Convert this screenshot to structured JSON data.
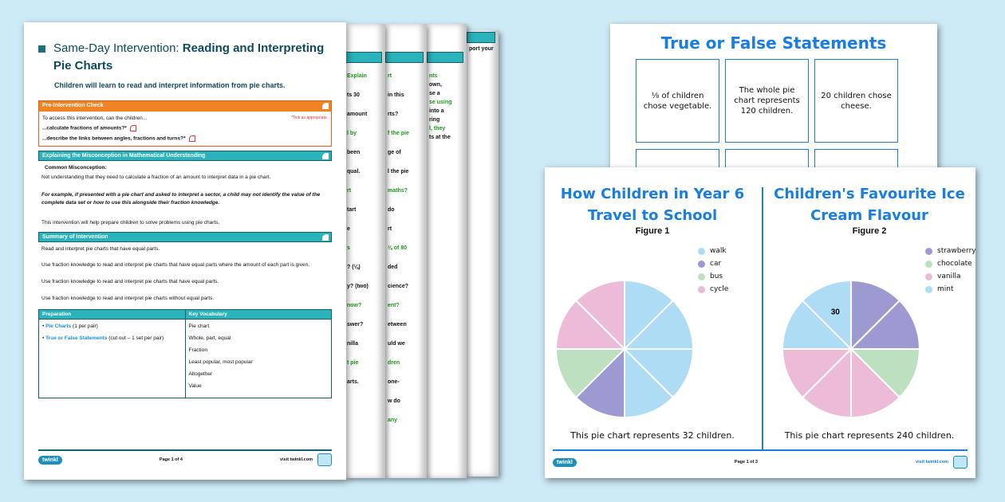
{
  "main_doc": {
    "title_prefix": "Same-Day Intervention: ",
    "title_bold": "Reading and Interpreting Pie Charts",
    "subtitle": "Children will learn to read and interpret information from pie charts.",
    "pre_check": {
      "header": "Pre-Intervention Check",
      "intro": "To access this intervention, can the children...",
      "note": "*Tick as appropriate.",
      "items": [
        "...calculate fractions of amounts?*",
        "...describe the links between angles, fractions and turns?*"
      ]
    },
    "misconception": {
      "header": "Explaining the Misconception in Mathematical Understanding",
      "label": "Common Misconception:",
      "text": "Not understanding that they need to calculate a fraction of an amount to interpret data in a pie chart.",
      "example": "For example, if presented with a pie chart and asked to interpret a sector, a child may not identify the value of the complete data set or how to use this alongside their fraction knowledge.",
      "help": "This intervention will help prepare children to solve problems using pie charts."
    },
    "summary": {
      "header": "Summary of Intervention",
      "items": [
        "Read and interpret pie charts that have equal parts.",
        "Use fraction knowledge to read and interpret pie charts that have equal parts where the amount of each part is given.",
        "Use fraction knowledge to read and interpret pie charts that have equal parts.",
        "Use fraction knowledge to read and interpret pie charts without equal parts."
      ]
    },
    "table": {
      "col1": "Preparation",
      "col2": "Key Vocabulary",
      "prep": [
        {
          "link": "Pie Charts",
          "rest": " (1 per pair)"
        },
        {
          "link": "True or False Statements",
          "rest": " (cut out – 1 set per pair)"
        }
      ],
      "vocab": [
        "Pie chart",
        "Whole, part, equal",
        "Fraction",
        "Least popular, most popular",
        "Altogether",
        "Value"
      ]
    },
    "footer": {
      "logo": "twinkl",
      "page": "Page 1 of 4",
      "site": "visit twinkl.com"
    }
  },
  "back_pages": {
    "p2": [
      "Explain",
      "ts 30",
      "amount",
      "l by",
      "been",
      "qual.",
      "rt",
      "tart",
      "e",
      "s",
      "? (⅛)",
      "y? (two)",
      "now?",
      "swer?",
      "nilla",
      "t pie",
      "arts."
    ],
    "p3": [
      "rt",
      "in this",
      "rts?",
      "f the pie",
      "ge of",
      "l the pie",
      "maths?",
      "do",
      "rt",
      "⅛ of 80",
      "ded",
      "cience?",
      "ent?",
      "etween",
      "uld we",
      "dren",
      "one-",
      "w do",
      "any"
    ],
    "p4": [
      "nts",
      "own,",
      "se a",
      "se using",
      "into a",
      "ring",
      "l, they",
      "ts at the"
    ],
    "p5": [
      "port your"
    ]
  },
  "true_false": {
    "title": "True or False Statements",
    "cards": [
      "⅛ of children chose vegetable.",
      "The whole pie chart represents 120 children.",
      "20 children chose cheese."
    ]
  },
  "figures_page": {
    "footer": {
      "logo": "twinkl",
      "page": "Page 1 of 3",
      "site": "visit twinkl.com"
    }
  },
  "chart_data": [
    {
      "type": "pie",
      "title": "How Children in Year 6 Travel to School",
      "subtitle": "Figure 1",
      "caption": "This pie chart represents 32 children.",
      "categories": [
        "walk",
        "car",
        "bus",
        "cycle"
      ],
      "values": [
        4,
        1,
        1,
        2
      ],
      "unit": "eighths",
      "colors": {
        "walk": "#aedcf5",
        "car": "#9c9ad0",
        "bus": "#bde0c0",
        "cycle": "#ebbbd8"
      },
      "slice_order": [
        "walk",
        "walk",
        "walk",
        "walk",
        "car",
        "bus",
        "cycle",
        "cycle"
      ],
      "data_labels": []
    },
    {
      "type": "pie",
      "title": "Children's Favourite Ice Cream Flavour",
      "subtitle": "Figure 2",
      "caption": "This pie chart represents 240 children.",
      "categories": [
        "strawberry",
        "chocolate",
        "vanilla",
        "mint"
      ],
      "values": [
        2,
        1,
        3,
        2
      ],
      "unit": "eighths",
      "colors": {
        "strawberry": "#9c9ad0",
        "chocolate": "#bde0c0",
        "vanilla": "#ebbbd8",
        "mint": "#aedcf5"
      },
      "slice_order": [
        "strawberry",
        "strawberry",
        "chocolate",
        "vanilla",
        "vanilla",
        "vanilla",
        "mint",
        "mint"
      ],
      "data_labels": [
        {
          "slice": 7,
          "text": "30"
        }
      ]
    }
  ]
}
